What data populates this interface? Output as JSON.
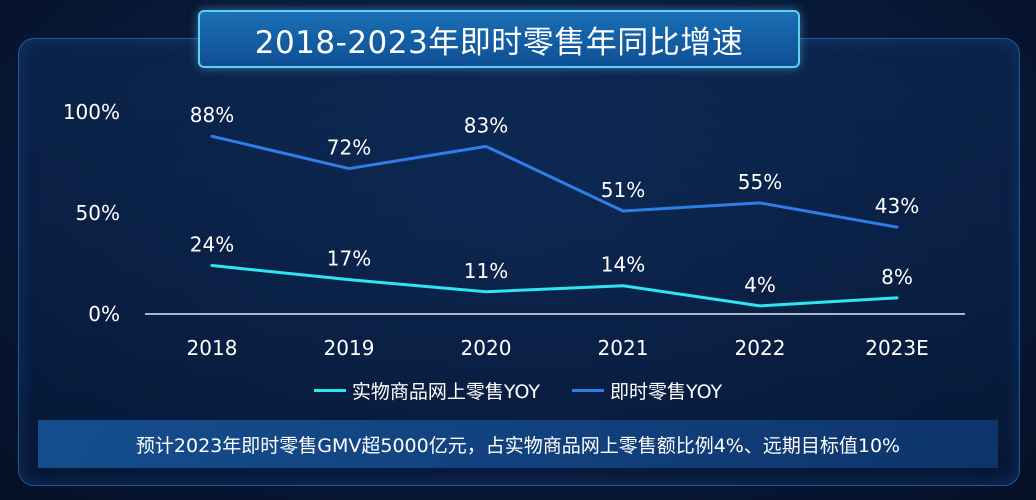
{
  "title": "2018-2023年即时零售年同比增速",
  "footer_note": "预计2023年即时零售GMV超5000亿元，占实物商品网上零售额比例4%、远期目标值10%",
  "colors": {
    "series_physical": "#2ee6f2",
    "series_instant": "#2f7de8",
    "axis": "#dfe8f5"
  },
  "chart_data": {
    "type": "line",
    "categories": [
      "2018",
      "2019",
      "2020",
      "2021",
      "2022",
      "2023E"
    ],
    "ylim": [
      0,
      100
    ],
    "y_ticks": [
      "0%",
      "50%",
      "100%"
    ],
    "y_tick_values": [
      0,
      50,
      100
    ],
    "series": [
      {
        "name": "实物商品网上零售YOY",
        "values": [
          24,
          17,
          11,
          14,
          4,
          8
        ],
        "labels": [
          "24%",
          "17%",
          "11%",
          "14%",
          "4%",
          "8%"
        ]
      },
      {
        "name": "即时零售YOY",
        "values": [
          88,
          72,
          83,
          51,
          55,
          43
        ],
        "labels": [
          "88%",
          "72%",
          "83%",
          "51%",
          "55%",
          "43%"
        ]
      }
    ],
    "legend_position": "bottom",
    "grid": false
  }
}
